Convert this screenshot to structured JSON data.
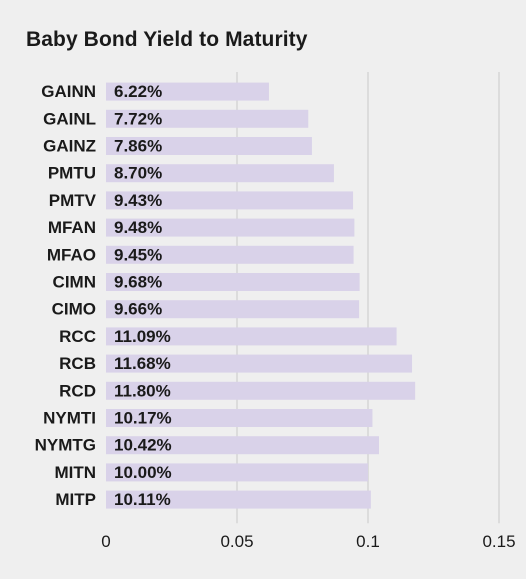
{
  "colors": {
    "background": "#efefef",
    "bar": "#d9d2e9",
    "gridline": "#c8c8c8",
    "text": "#1a1a1a"
  },
  "chart_data": {
    "type": "bar",
    "orientation": "horizontal",
    "title": "Baby Bond Yield to Maturity",
    "xlabel": "",
    "ylabel": "",
    "categories": [
      "GAINN",
      "GAINL",
      "GAINZ",
      "PMTU",
      "PMTV",
      "MFAN",
      "MFAO",
      "CIMN",
      "CIMO",
      "RCC",
      "RCB",
      "RCD",
      "NYMTI",
      "NYMTG",
      "MITN",
      "MITP"
    ],
    "values": [
      0.0622,
      0.0772,
      0.0786,
      0.087,
      0.0943,
      0.0948,
      0.0945,
      0.0968,
      0.0966,
      0.1109,
      0.1168,
      0.118,
      0.1017,
      0.1042,
      0.1,
      0.1011
    ],
    "data_labels": [
      "6.22%",
      "7.72%",
      "7.86%",
      "8.70%",
      "9.43%",
      "9.48%",
      "9.45%",
      "9.68%",
      "9.66%",
      "11.09%",
      "11.68%",
      "11.80%",
      "10.17%",
      "10.42%",
      "10.00%",
      "10.11%"
    ],
    "xlim": [
      0,
      0.15
    ],
    "x_ticks": [
      0,
      0.05,
      0.1,
      0.15
    ],
    "x_tick_labels": [
      "0",
      "0.05",
      "0.1",
      "0.15"
    ],
    "grid": "vertical",
    "legend": "none"
  }
}
